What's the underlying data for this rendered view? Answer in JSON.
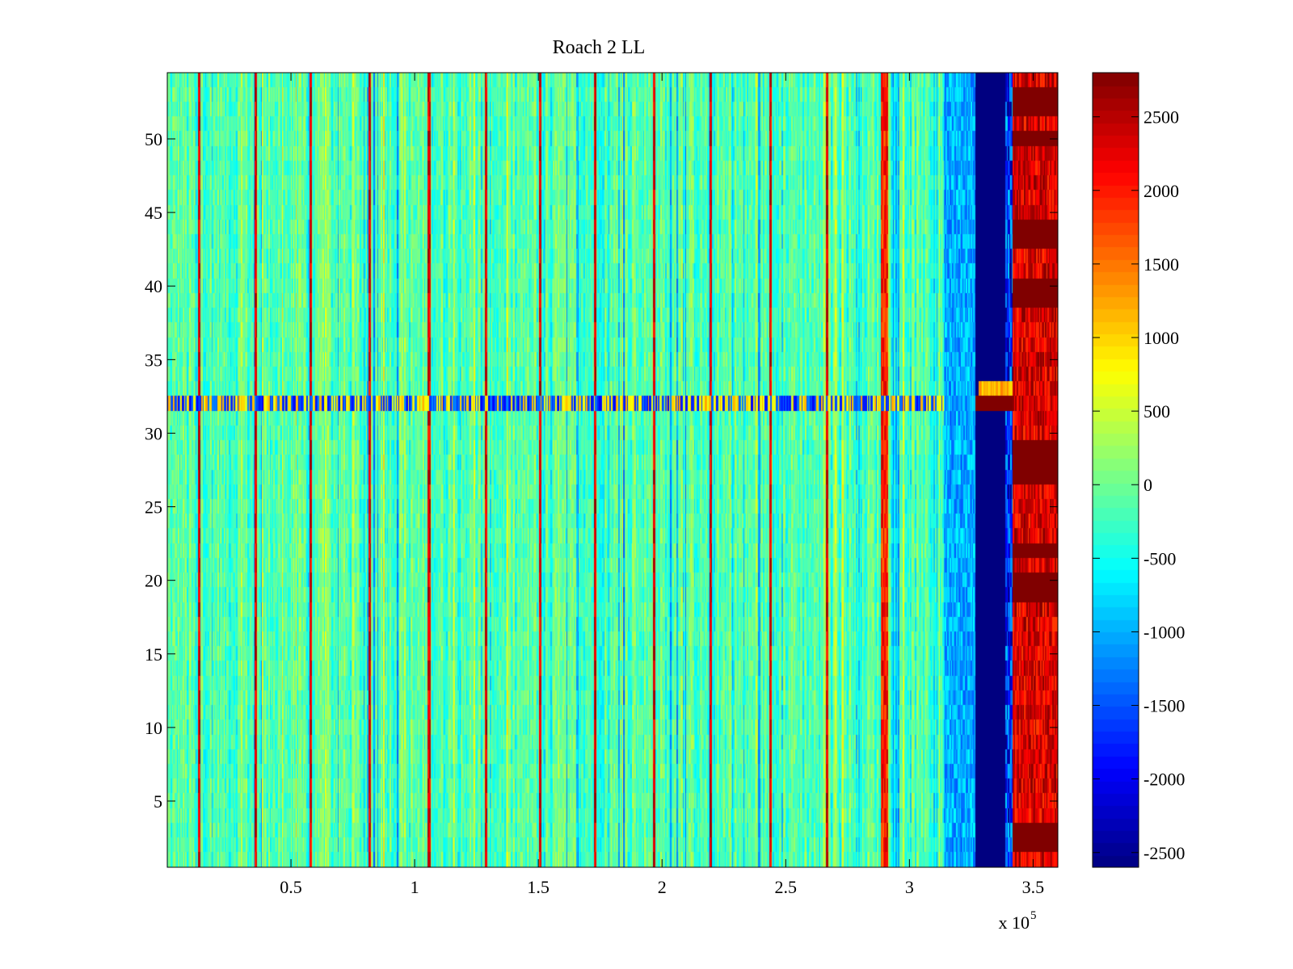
{
  "chart_data": {
    "type": "heatmap",
    "title": "Roach 2 LL",
    "xlabel": "",
    "ylabel": "",
    "x_exponent_label": "x 10",
    "x_exponent_power": "5",
    "xlim": [
      0,
      3.6
    ],
    "ylim": [
      0.5,
      54.5
    ],
    "rows": 54,
    "columns": 720,
    "x_ticks": [
      0.5,
      1,
      1.5,
      2,
      2.5,
      3,
      3.5
    ],
    "x_tick_labels": [
      "0.5",
      "1",
      "1.5",
      "2",
      "2.5",
      "3",
      "3.5"
    ],
    "y_ticks": [
      5,
      10,
      15,
      20,
      25,
      30,
      35,
      40,
      45,
      50
    ],
    "y_tick_labels": [
      "5",
      "10",
      "15",
      "20",
      "25",
      "30",
      "35",
      "40",
      "45",
      "50"
    ],
    "colorbar": {
      "colormap": "jet",
      "range": [
        -2600,
        2800
      ],
      "ticks": [
        -2500,
        -2000,
        -1500,
        -1000,
        -500,
        0,
        500,
        1000,
        1500,
        2000,
        2500
      ],
      "tick_labels": [
        "-2500",
        "-2000",
        "-1500",
        "-1000",
        "-500",
        "0",
        "500",
        "1000",
        "1500",
        "2000",
        "2500"
      ]
    },
    "data_summary": {
      "background_value_range": [
        -700,
        500
      ],
      "strong_vertical_lines_x": [
        0.13,
        0.36,
        0.58,
        0.82,
        1.06,
        1.29,
        1.51,
        1.73,
        1.97,
        2.2,
        2.44,
        2.67,
        2.9
      ],
      "strong_line_value": 2300,
      "anomalous_row_y": 32,
      "anomalous_row_value_range": [
        -2000,
        1500
      ],
      "low_band_x_range": [
        3.14,
        3.27
      ],
      "low_band_value": -1000,
      "min_band_x_range": [
        3.27,
        3.42
      ],
      "min_band_value": -2600,
      "high_band_x_range": [
        3.42,
        3.6
      ],
      "high_band_value_range": [
        1800,
        2800
      ],
      "anomalous_row_min_band_value": 2800
    }
  }
}
